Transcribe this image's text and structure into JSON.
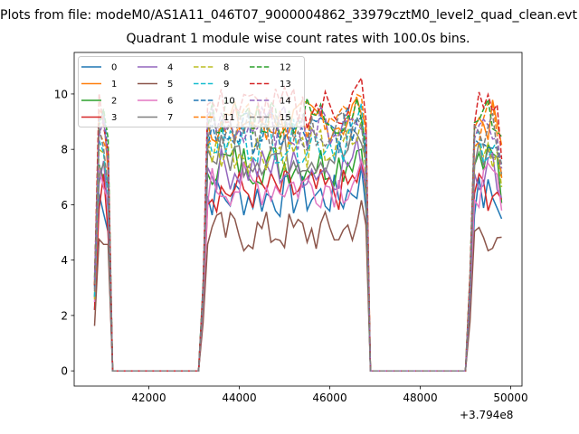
{
  "header": {
    "suptitle": "Plots from file: modeM0/AS1A11_046T07_9000004862_33979cztM0_level2_quad_clean.evt",
    "title": "Quadrant 1 module wise count rates with 100.0s bins."
  },
  "chart_data": {
    "type": "line",
    "title": "Quadrant 1 module wise count rates with 100.0s bins.",
    "xlabel": "",
    "ylabel": "",
    "x_offset_label": "+3.794e8",
    "xlim": [
      40350,
      50250
    ],
    "ylim": [
      -0.55,
      11.5
    ],
    "xticks": [
      42000,
      44000,
      46000,
      48000,
      50000
    ],
    "xtick_labels": [
      "42000",
      "44000",
      "46000",
      "48000",
      "50000"
    ],
    "yticks": [
      0,
      2,
      4,
      6,
      8,
      10
    ],
    "ytick_labels": [
      "0",
      "2",
      "4",
      "6",
      "8",
      "10"
    ],
    "legend_position": "upper-left",
    "grid": false,
    "segments": [
      {
        "start": 40800,
        "end": 41100
      },
      {
        "start": 43200,
        "end": 46800
      },
      {
        "start": 49100,
        "end": 49800
      }
    ],
    "series": [
      {
        "name": "0",
        "color": "#1f77b4",
        "dash": "solid",
        "level": 6.3
      },
      {
        "name": "1",
        "color": "#ff7f0e",
        "dash": "solid",
        "level": 9.0
      },
      {
        "name": "2",
        "color": "#2ca02c",
        "dash": "solid",
        "level": 7.5
      },
      {
        "name": "3",
        "color": "#d62728",
        "dash": "solid",
        "level": 6.5
      },
      {
        "name": "4",
        "color": "#9467bd",
        "dash": "solid",
        "level": 7.3
      },
      {
        "name": "5",
        "color": "#8c564b",
        "dash": "solid",
        "level": 5.0
      },
      {
        "name": "6",
        "color": "#e377c2",
        "dash": "solid",
        "level": 6.7
      },
      {
        "name": "7",
        "color": "#7f7f7f",
        "dash": "solid",
        "level": 7.8
      },
      {
        "name": "8",
        "color": "#bcbd22",
        "dash": "dashed",
        "level": 8.0
      },
      {
        "name": "9",
        "color": "#17becf",
        "dash": "dashed",
        "level": 8.3
      },
      {
        "name": "10",
        "color": "#1f77b4",
        "dash": "dashed",
        "level": 8.6
      },
      {
        "name": "11",
        "color": "#ff7f0e",
        "dash": "dashed",
        "level": 8.9
      },
      {
        "name": "12",
        "color": "#2ca02c",
        "dash": "dashed",
        "level": 9.2
      },
      {
        "name": "13",
        "color": "#d62728",
        "dash": "dashed",
        "level": 9.5
      },
      {
        "name": "14",
        "color": "#9467bd",
        "dash": "dashed",
        "level": 8.8
      },
      {
        "name": "15",
        "color": "#7f7f7f",
        "dash": "dashed",
        "level": 8.6
      }
    ]
  }
}
